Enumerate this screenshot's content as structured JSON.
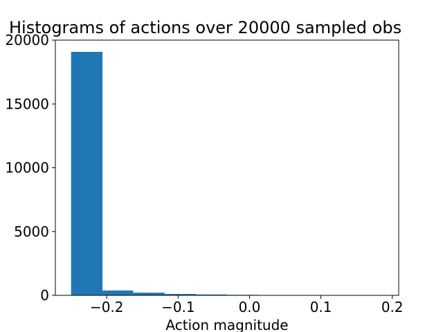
{
  "chart_data": {
    "type": "bar",
    "title": "Histograms of actions over 20000 sampled obs",
    "xlabel": "Action magnitude",
    "ylabel": "",
    "bar_color": "#1f77b4",
    "bins": [
      {
        "x0": -0.25,
        "x1": -0.206,
        "count": 19080
      },
      {
        "x0": -0.206,
        "x1": -0.163,
        "count": 380
      },
      {
        "x0": -0.163,
        "x1": -0.119,
        "count": 210
      },
      {
        "x0": -0.119,
        "x1": -0.075,
        "count": 110
      },
      {
        "x0": -0.075,
        "x1": -0.032,
        "count": 65
      },
      {
        "x0": -0.032,
        "x1": 0.012,
        "count": 40
      },
      {
        "x0": 0.012,
        "x1": 0.056,
        "count": 25
      },
      {
        "x0": 0.056,
        "x1": 0.099,
        "count": 15
      },
      {
        "x0": 0.099,
        "x1": 0.143,
        "count": 10
      },
      {
        "x0": 0.143,
        "x1": 0.187,
        "count": 5
      }
    ],
    "xlim": [
      -0.272,
      0.209
    ],
    "ylim": [
      0,
      20000
    ],
    "xticks": [
      -0.2,
      -0.1,
      0.0,
      0.1,
      0.2
    ],
    "xtick_labels": [
      "−0.2",
      "−0.1",
      "0.0",
      "0.1",
      "0.2"
    ],
    "yticks": [
      0,
      5000,
      10000,
      15000,
      20000
    ],
    "ytick_labels": [
      "0",
      "5000",
      "10000",
      "15000",
      "20000"
    ],
    "grid": false
  }
}
